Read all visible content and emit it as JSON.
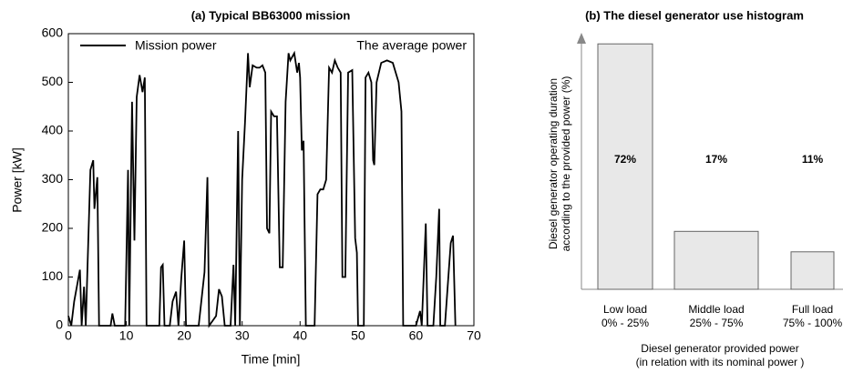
{
  "chart_data": [
    {
      "type": "line",
      "title": "(a) Typical BB63000 mission",
      "xlabel": "Time [min]",
      "ylabel": "Power [kW]",
      "xlim": [
        0,
        70
      ],
      "xticks": [
        0,
        10,
        20,
        30,
        40,
        50,
        60,
        70
      ],
      "ylim": [
        0,
        600
      ],
      "yticks": [
        0,
        100,
        200,
        300,
        400,
        500,
        600
      ],
      "annotation": "The average power",
      "x": [
        0,
        0.5,
        1,
        2,
        2.3,
        2.7,
        3,
        3.8,
        4.3,
        4.5,
        5,
        5.3,
        7.3,
        7.6,
        8,
        9.8,
        10.3,
        10.5,
        11,
        11.4,
        11.8,
        12.3,
        12.8,
        13.2,
        13.5,
        15.7,
        16,
        16.3,
        16.6,
        17.5,
        18,
        18.6,
        19,
        19.5,
        20,
        20.3,
        22.5,
        23.5,
        24,
        24.3,
        25.5,
        26,
        26.5,
        27,
        28,
        28.5,
        28.8,
        29.3,
        29.6,
        30,
        30.5,
        31,
        31.3,
        31.8,
        32.5,
        33,
        33.5,
        34,
        34.3,
        34.7,
        35,
        35.5,
        36,
        36.5,
        37,
        37.5,
        38,
        38.3,
        39,
        39.5,
        39.8,
        40,
        40.3,
        40.6,
        41,
        42.5,
        43,
        43.5,
        44,
        44.5,
        45,
        45.5,
        46,
        46.5,
        47,
        47.3,
        47.8,
        48.3,
        49,
        49.5,
        49.8,
        50,
        51,
        51.3,
        51.8,
        52.3,
        52.6,
        52.8,
        53.2,
        54,
        55,
        56,
        57,
        57.5,
        57.8,
        60,
        60.7,
        61,
        61.7,
        62,
        63,
        63.5,
        64,
        64.2,
        65,
        66,
        66.4,
        66.8
      ],
      "series": [
        {
          "name": "Mission power",
          "color": "#000000",
          "values": [
            20,
            0,
            50,
            115,
            0,
            80,
            0,
            320,
            340,
            240,
            305,
            0,
            0,
            25,
            0,
            0,
            320,
            0,
            460,
            175,
            470,
            515,
            480,
            510,
            0,
            0,
            120,
            125,
            0,
            0,
            50,
            70,
            0,
            100,
            175,
            0,
            0,
            110,
            305,
            0,
            20,
            75,
            60,
            0,
            0,
            125,
            0,
            400,
            0,
            300,
            420,
            560,
            490,
            535,
            530,
            530,
            535,
            520,
            200,
            190,
            440,
            430,
            430,
            120,
            120,
            460,
            560,
            545,
            560,
            520,
            540,
            510,
            360,
            380,
            0,
            0,
            270,
            280,
            280,
            300,
            530,
            520,
            545,
            530,
            520,
            100,
            100,
            520,
            525,
            180,
            150,
            0,
            0,
            510,
            520,
            500,
            340,
            330,
            500,
            540,
            545,
            540,
            500,
            440,
            0,
            0,
            30,
            0,
            210,
            0,
            0,
            100,
            240,
            0,
            0,
            170,
            185,
            0
          ]
        }
      ]
    },
    {
      "type": "bar",
      "title": "(b) The diesel generator use histogram",
      "xlabel": [
        "Diesel generator provided power",
        "(in relation with its nominal power )"
      ],
      "ylabel": [
        "Diesel generator operating duration",
        "according to the provided power (%)"
      ],
      "ylim": [
        0,
        75
      ],
      "categories": [
        "Low load",
        "Middle load",
        "Full load"
      ],
      "category_ranges": [
        "0% - 25%",
        "25% - 75%",
        "75% - 100%"
      ],
      "values": [
        72,
        17,
        11
      ],
      "value_labels": [
        "72%",
        "17%",
        "11%"
      ],
      "color": "#e8e8e8"
    }
  ]
}
